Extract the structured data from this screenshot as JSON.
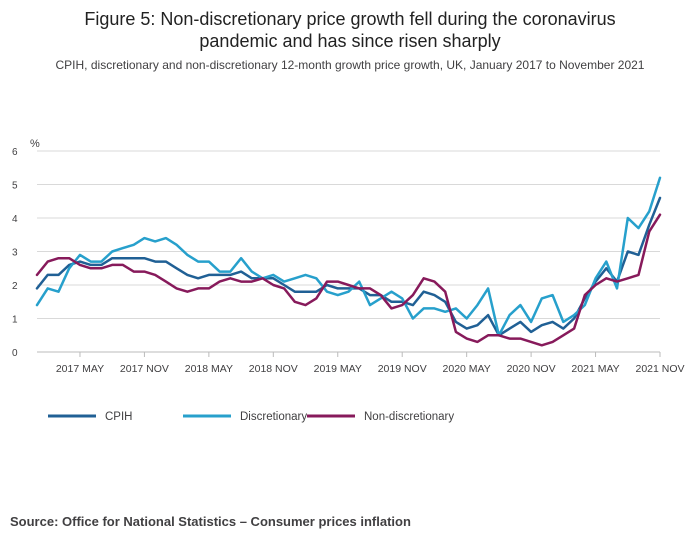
{
  "title": "Figure 5: Non-discretionary price growth fell during the coronavirus pandemic and has since risen sharply",
  "title_line1": "Figure 5: Non-discretionary price growth fell during the coronavirus",
  "title_line2": "pandemic and has since risen sharply",
  "subtitle": "CPIH, discretionary and non-discretionary 12-month growth price growth, UK, January 2017 to November 2021",
  "source": "Source: Office for National Statistics – Consumer prices inflation",
  "chart_data": {
    "type": "line",
    "ylabel": "%",
    "ylim": [
      0,
      6
    ],
    "yticks": [
      0,
      1,
      2,
      3,
      4,
      5,
      6
    ],
    "grid": true,
    "xticks": [
      {
        "index": 4,
        "label": "2017 MAY"
      },
      {
        "index": 10,
        "label": "2017 NOV"
      },
      {
        "index": 16,
        "label": "2018 MAY"
      },
      {
        "index": 22,
        "label": "2018 NOV"
      },
      {
        "index": 28,
        "label": "2019 MAY"
      },
      {
        "index": 34,
        "label": "2019 NOV"
      },
      {
        "index": 40,
        "label": "2020 MAY"
      },
      {
        "index": 46,
        "label": "2020 NOV"
      },
      {
        "index": 52,
        "label": "2021 MAY"
      },
      {
        "index": 58,
        "label": "2021 NOV"
      }
    ],
    "x_start": "January 2017",
    "x_end": "November 2021",
    "series": [
      {
        "name": "CPIH",
        "color": "#206095",
        "values": [
          1.9,
          2.3,
          2.3,
          2.6,
          2.7,
          2.6,
          2.6,
          2.8,
          2.8,
          2.8,
          2.8,
          2.7,
          2.7,
          2.5,
          2.3,
          2.2,
          2.3,
          2.3,
          2.3,
          2.4,
          2.2,
          2.2,
          2.2,
          2.0,
          1.8,
          1.8,
          1.8,
          2.0,
          1.9,
          1.9,
          1.9,
          1.7,
          1.7,
          1.5,
          1.5,
          1.4,
          1.8,
          1.7,
          1.5,
          0.9,
          0.7,
          0.8,
          1.1,
          0.5,
          0.7,
          0.9,
          0.6,
          0.8,
          0.9,
          0.7,
          1.0,
          1.6,
          2.1,
          2.5,
          2.1,
          3.0,
          2.9,
          3.8,
          4.6
        ]
      },
      {
        "name": "Discretionary",
        "color": "#27a0cc",
        "values": [
          1.4,
          1.9,
          1.8,
          2.5,
          2.9,
          2.7,
          2.7,
          3.0,
          3.1,
          3.2,
          3.4,
          3.3,
          3.4,
          3.2,
          2.9,
          2.7,
          2.7,
          2.4,
          2.4,
          2.8,
          2.4,
          2.2,
          2.3,
          2.1,
          2.2,
          2.3,
          2.2,
          1.8,
          1.7,
          1.8,
          2.1,
          1.4,
          1.6,
          1.8,
          1.6,
          1.0,
          1.3,
          1.3,
          1.2,
          1.3,
          1.0,
          1.4,
          1.9,
          0.5,
          1.1,
          1.4,
          0.9,
          1.6,
          1.7,
          0.9,
          1.1,
          1.4,
          2.2,
          2.7,
          1.9,
          4.0,
          3.7,
          4.2,
          5.2
        ]
      },
      {
        "name": "Non-discretionary",
        "color": "#871a5b",
        "values": [
          2.3,
          2.7,
          2.8,
          2.8,
          2.6,
          2.5,
          2.5,
          2.6,
          2.6,
          2.4,
          2.4,
          2.3,
          2.1,
          1.9,
          1.8,
          1.9,
          1.9,
          2.1,
          2.2,
          2.1,
          2.1,
          2.2,
          2.0,
          1.9,
          1.5,
          1.4,
          1.6,
          2.1,
          2.1,
          2.0,
          1.9,
          1.9,
          1.7,
          1.3,
          1.4,
          1.7,
          2.2,
          2.1,
          1.8,
          0.6,
          0.4,
          0.3,
          0.5,
          0.5,
          0.4,
          0.4,
          0.3,
          0.2,
          0.3,
          0.5,
          0.7,
          1.7,
          2.0,
          2.2,
          2.1,
          2.2,
          2.3,
          3.6,
          4.1
        ]
      }
    ]
  }
}
